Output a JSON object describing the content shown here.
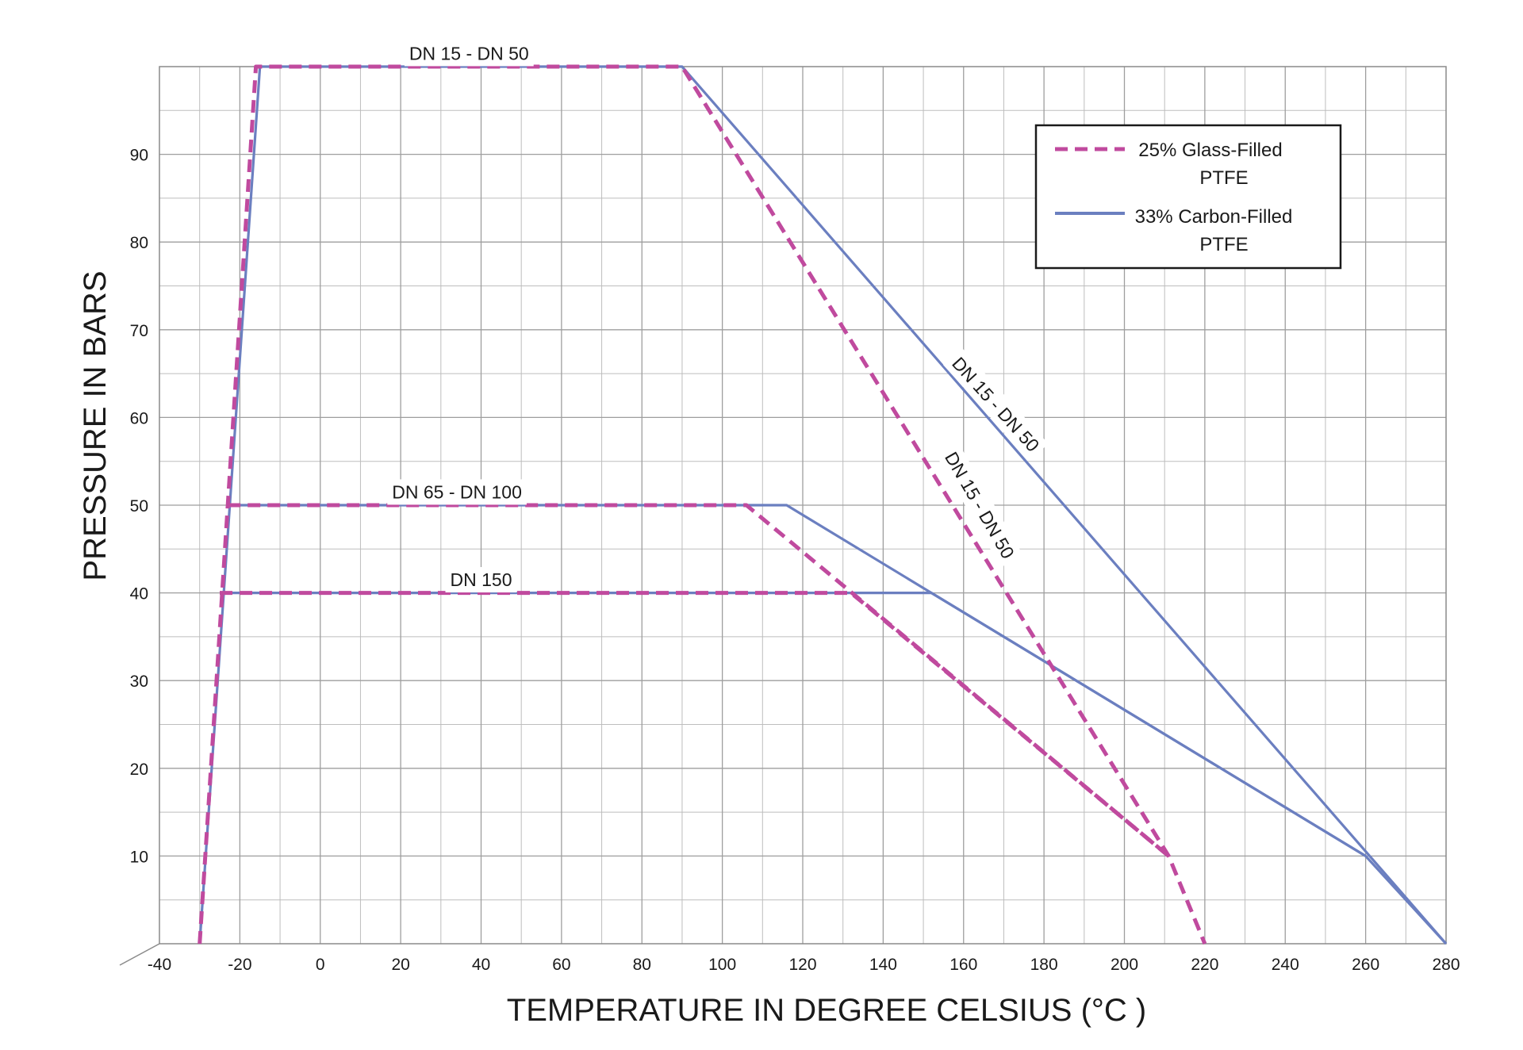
{
  "chart_data": {
    "type": "line",
    "title": "",
    "xlabel": "TEMPERATURE IN DEGREE CELSIUS (°C )",
    "ylabel": "PRESSURE IN BARS",
    "xlim": [
      -40,
      280
    ],
    "ylim": [
      0,
      100
    ],
    "x_ticks": [
      -40,
      -20,
      0,
      20,
      40,
      60,
      80,
      100,
      120,
      140,
      160,
      180,
      200,
      220,
      240,
      260,
      280
    ],
    "x_tick_labels": [
      "-40",
      "-20",
      "0",
      "20",
      "40",
      "60",
      "80",
      "100",
      "120",
      "140",
      "160",
      "180",
      "200",
      "220",
      "240",
      "260",
      "280"
    ],
    "y_ticks": [
      10,
      20,
      30,
      40,
      50,
      60,
      70,
      80,
      90
    ],
    "y_tick_labels": [
      "10",
      "20",
      "30",
      "40",
      "50",
      "60",
      "70",
      "80",
      "90"
    ],
    "grid": true,
    "grid_minor_x_step": 10,
    "grid_minor_y_step": 5,
    "legend_position": "top-right",
    "legend": [
      {
        "key": "glass",
        "line1": "25% Glass-Filled",
        "line2": "PTFE"
      },
      {
        "key": "carbon",
        "line1": "33% Carbon-Filled",
        "line2": "PTFE"
      }
    ],
    "series": [
      {
        "material": "carbon",
        "style": "solid",
        "color": "#6b7fc0",
        "points": [
          [
            -30,
            0
          ],
          [
            -15,
            100
          ],
          [
            90,
            100
          ],
          [
            280,
            0
          ]
        ]
      },
      {
        "material": "carbon",
        "style": "solid",
        "color": "#6b7fc0",
        "points": [
          [
            -23,
            50
          ],
          [
            116,
            50
          ],
          [
            260,
            10
          ],
          [
            280,
            0
          ]
        ]
      },
      {
        "material": "carbon",
        "style": "solid",
        "color": "#6b7fc0",
        "points": [
          [
            -25,
            40
          ],
          [
            152,
            40
          ],
          [
            260,
            10
          ]
        ]
      },
      {
        "material": "glass",
        "style": "dashed",
        "color": "#c04a9e",
        "points": [
          [
            -30,
            0
          ],
          [
            -16,
            100
          ],
          [
            90,
            100
          ],
          [
            211,
            10
          ],
          [
            220,
            0
          ]
        ]
      },
      {
        "material": "glass",
        "style": "dashed",
        "color": "#c04a9e",
        "points": [
          [
            -23,
            50
          ],
          [
            106,
            50
          ],
          [
            211,
            10
          ]
        ]
      },
      {
        "material": "glass",
        "style": "dashed",
        "color": "#c04a9e",
        "points": [
          [
            -25,
            40
          ],
          [
            132,
            40
          ],
          [
            211,
            10
          ]
        ]
      }
    ],
    "annotations": [
      {
        "id": "dn15-top",
        "text": "DN 15 - DN 50",
        "x": 37,
        "y": 101.5,
        "angle": 0,
        "anchor": "middle"
      },
      {
        "id": "dn65",
        "text": "DN 65 - DN 100",
        "x": 34,
        "y": 51.5,
        "angle": 0,
        "anchor": "middle"
      },
      {
        "id": "dn150",
        "text": "DN 150",
        "x": 40,
        "y": 41.5,
        "angle": 0,
        "anchor": "middle"
      },
      {
        "id": "dn15-carbon",
        "text": "DN 15 - DN 50",
        "x": 168,
        "y": 61.5,
        "angle": 48,
        "anchor": "middle"
      },
      {
        "id": "dn15-glass",
        "text": "DN 15 - DN 50",
        "x": 164,
        "y": 50,
        "angle": 60,
        "anchor": "middle"
      }
    ]
  }
}
